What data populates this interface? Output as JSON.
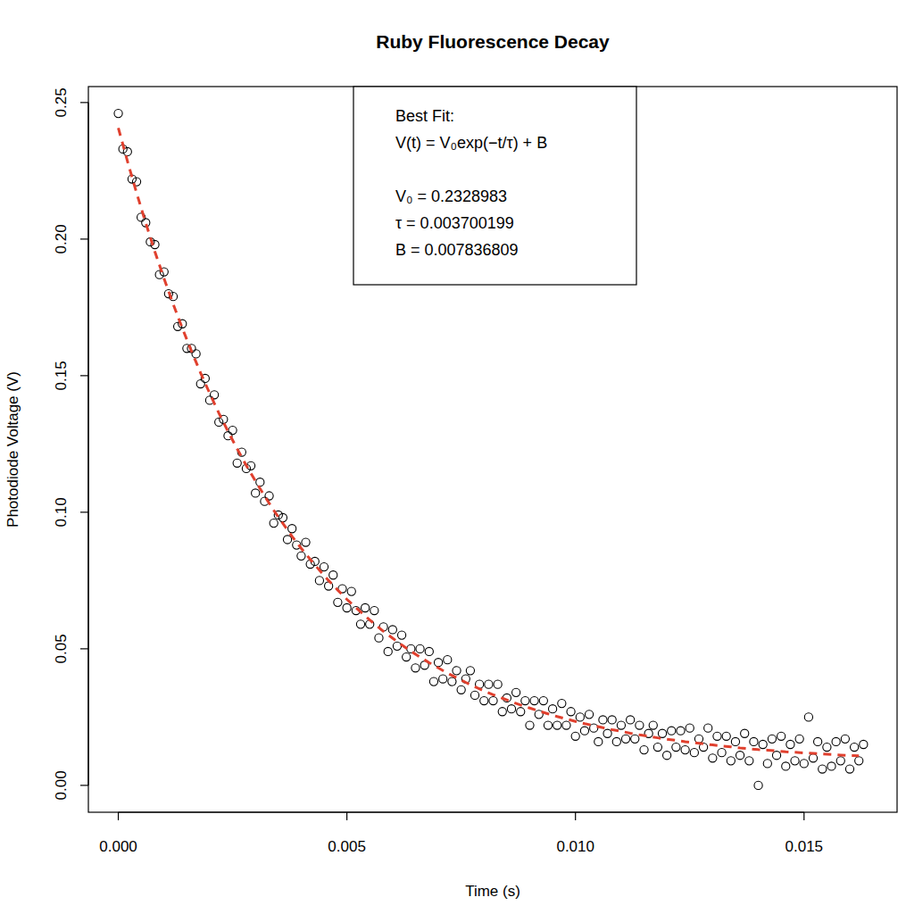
{
  "chart_data": {
    "type": "scatter",
    "title": "Ruby Fluorescence Decay",
    "x_label": "Time (s)",
    "y_label": "Photodiode Voltage (V)",
    "annotations": [
      "Best Fit:",
      "V(t) = V₀exp(−t/τ) + B",
      "V₀ = 0.2328983",
      "τ = 0.003700199",
      "B = 0.007836809"
    ],
    "xlim": [
      -0.000655,
      0.017035
    ],
    "ylim": [
      -0.00984,
      0.25584
    ],
    "xticks": [
      {
        "value": 0,
        "label": "0.000"
      },
      {
        "value": 0.005,
        "label": "0.005"
      },
      {
        "value": 0.01,
        "label": "0.010"
      },
      {
        "value": 0.015,
        "label": "0.015"
      }
    ],
    "yticks": [
      {
        "value": 0,
        "label": "0.00"
      },
      {
        "value": 0.05,
        "label": "0.05"
      },
      {
        "value": 0.1,
        "label": "0.10"
      },
      {
        "value": 0.15,
        "label": "0.15"
      },
      {
        "value": 0.2,
        "label": "0.20"
      },
      {
        "value": 0.25,
        "label": "0.25"
      }
    ],
    "grid": false,
    "series": [
      {
        "type": "scatter",
        "color": "#000000",
        "marker": "circle",
        "x": [
          0,
          0.0001,
          0.0002,
          0.0003,
          0.0004,
          0.0005,
          0.0006,
          0.0007,
          0.0008,
          0.0009,
          0.001,
          0.0011,
          0.0012,
          0.0013,
          0.0014,
          0.0015,
          0.0016,
          0.0017,
          0.0018,
          0.0019,
          0.002,
          0.0021,
          0.0022,
          0.0023,
          0.0024,
          0.0025,
          0.0026,
          0.0027,
          0.0028,
          0.0029,
          0.003,
          0.0031,
          0.0032,
          0.0033,
          0.0034,
          0.0035,
          0.0036,
          0.0037,
          0.0038,
          0.0039,
          0.004,
          0.0041,
          0.0042,
          0.0043,
          0.0044,
          0.0045,
          0.0046,
          0.0047,
          0.0048,
          0.0049,
          0.005,
          0.0051,
          0.0052,
          0.0053,
          0.0054,
          0.0055,
          0.0056,
          0.0057,
          0.0058,
          0.0059,
          0.006,
          0.0061,
          0.0062,
          0.0063,
          0.0064,
          0.0065,
          0.0066,
          0.0067,
          0.0068,
          0.0069,
          0.007,
          0.0071,
          0.0072,
          0.0073,
          0.0074,
          0.0075,
          0.0076,
          0.0077,
          0.0078,
          0.0079,
          0.008,
          0.0081,
          0.0082,
          0.0083,
          0.0084,
          0.0085,
          0.0086,
          0.0087,
          0.0088,
          0.0089,
          0.009,
          0.0091,
          0.0092,
          0.0093,
          0.0094,
          0.0095,
          0.0096,
          0.0097,
          0.0098,
          0.0099,
          0.01,
          0.0101,
          0.0102,
          0.0103,
          0.0104,
          0.0105,
          0.0106,
          0.0107,
          0.0108,
          0.0109,
          0.011,
          0.0111,
          0.0112,
          0.0113,
          0.0114,
          0.0115,
          0.0116,
          0.0117,
          0.0118,
          0.0119,
          0.012,
          0.0121,
          0.0122,
          0.0123,
          0.0124,
          0.0125,
          0.0126,
          0.0127,
          0.0128,
          0.0129,
          0.013,
          0.0131,
          0.0132,
          0.0133,
          0.0134,
          0.0135,
          0.0136,
          0.0137,
          0.0138,
          0.0139,
          0.014,
          0.0141,
          0.0142,
          0.0143,
          0.0144,
          0.0145,
          0.0146,
          0.0147,
          0.0148,
          0.0149,
          0.015,
          0.0151,
          0.0152,
          0.0153,
          0.0154,
          0.0155,
          0.0156,
          0.0157,
          0.0158,
          0.0159,
          0.016,
          0.0161,
          0.0162,
          0.0163
        ],
        "values": [
          0.246,
          0.233,
          0.232,
          0.222,
          0.221,
          0.208,
          0.206,
          0.199,
          0.198,
          0.187,
          0.188,
          0.18,
          0.179,
          0.168,
          0.169,
          0.16,
          0.16,
          0.158,
          0.147,
          0.149,
          0.141,
          0.143,
          0.133,
          0.134,
          0.128,
          0.13,
          0.118,
          0.122,
          0.116,
          0.117,
          0.107,
          0.111,
          0.104,
          0.106,
          0.096,
          0.099,
          0.098,
          0.09,
          0.094,
          0.088,
          0.084,
          0.089,
          0.081,
          0.082,
          0.075,
          0.08,
          0.073,
          0.077,
          0.067,
          0.072,
          0.065,
          0.071,
          0.064,
          0.059,
          0.065,
          0.059,
          0.064,
          0.054,
          0.058,
          0.049,
          0.057,
          0.051,
          0.055,
          0.047,
          0.05,
          0.043,
          0.05,
          0.044,
          0.049,
          0.038,
          0.045,
          0.039,
          0.046,
          0.038,
          0.042,
          0.035,
          0.039,
          0.042,
          0.033,
          0.037,
          0.031,
          0.037,
          0.031,
          0.037,
          0.027,
          0.032,
          0.028,
          0.034,
          0.027,
          0.031,
          0.022,
          0.031,
          0.026,
          0.031,
          0.022,
          0.028,
          0.022,
          0.03,
          0.022,
          0.027,
          0.018,
          0.025,
          0.02,
          0.026,
          0.021,
          0.016,
          0.024,
          0.019,
          0.024,
          0.016,
          0.022,
          0.017,
          0.024,
          0.017,
          0.022,
          0.013,
          0.019,
          0.022,
          0.014,
          0.019,
          0.011,
          0.02,
          0.014,
          0.02,
          0.013,
          0.021,
          0.012,
          0.017,
          0.014,
          0.021,
          0.01,
          0.018,
          0.012,
          0.018,
          0.009,
          0.016,
          0.011,
          0.019,
          0.009,
          0.016,
          0.0,
          0.015,
          0.008,
          0.017,
          0.011,
          0.018,
          0.007,
          0.015,
          0.009,
          0.017,
          0.008,
          0.025,
          0.01,
          0.016,
          0.006,
          0.014,
          0.007,
          0.016,
          0.009,
          0.017,
          0.006,
          0.014,
          0.009,
          0.015
        ]
      },
      {
        "type": "line",
        "color": "#e0402e",
        "line_style": "dashed",
        "x": [
          0,
          0.0002,
          0.0004,
          0.0006,
          0.0008,
          0.001,
          0.0012,
          0.0014,
          0.0016,
          0.0018,
          0.002,
          0.0022,
          0.0024,
          0.0026,
          0.0028,
          0.003,
          0.0032,
          0.0034,
          0.0036,
          0.0038,
          0.004,
          0.0042,
          0.0044,
          0.0046,
          0.0048,
          0.005,
          0.0052,
          0.0054,
          0.0056,
          0.0058,
          0.006,
          0.0062,
          0.0064,
          0.0066,
          0.0068,
          0.007,
          0.0072,
          0.0074,
          0.0076,
          0.0078,
          0.008,
          0.0082,
          0.0084,
          0.0086,
          0.0088,
          0.009,
          0.0092,
          0.0094,
          0.0096,
          0.0098,
          0.01,
          0.0102,
          0.0104,
          0.0106,
          0.0108,
          0.011,
          0.0112,
          0.0114,
          0.0116,
          0.0118,
          0.012,
          0.0122,
          0.0124,
          0.0126,
          0.0128,
          0.013,
          0.0132,
          0.0134,
          0.0136,
          0.0138,
          0.014,
          0.0142,
          0.0144,
          0.0146,
          0.0148,
          0.015,
          0.0152,
          0.0154,
          0.0156,
          0.0158,
          0.016,
          0.0162
        ],
        "values": [
          0.2407,
          0.2285,
          0.2169,
          0.2059,
          0.1954,
          0.1856,
          0.1762,
          0.1674,
          0.159,
          0.151,
          0.1435,
          0.1363,
          0.1296,
          0.1232,
          0.1171,
          0.1114,
          0.1059,
          0.1007,
          0.0959,
          0.0912,
          0.0868,
          0.0827,
          0.0788,
          0.075,
          0.0715,
          0.0681,
          0.065,
          0.062,
          0.0591,
          0.0564,
          0.0539,
          0.0514,
          0.0491,
          0.047,
          0.0449,
          0.043,
          0.0411,
          0.0394,
          0.0377,
          0.0361,
          0.0346,
          0.0332,
          0.0319,
          0.0306,
          0.0294,
          0.0283,
          0.0272,
          0.0262,
          0.0252,
          0.0243,
          0.0234,
          0.0226,
          0.0219,
          0.0211,
          0.0204,
          0.0198,
          0.0191,
          0.0185,
          0.018,
          0.0174,
          0.0169,
          0.0165,
          0.016,
          0.0156,
          0.0152,
          0.0148,
          0.0144,
          0.0141,
          0.0137,
          0.0134,
          0.0131,
          0.0129,
          0.0126,
          0.0123,
          0.0121,
          0.0119,
          0.0117,
          0.0115,
          0.0113,
          0.0111,
          0.0109,
          0.0108
        ]
      }
    ]
  }
}
